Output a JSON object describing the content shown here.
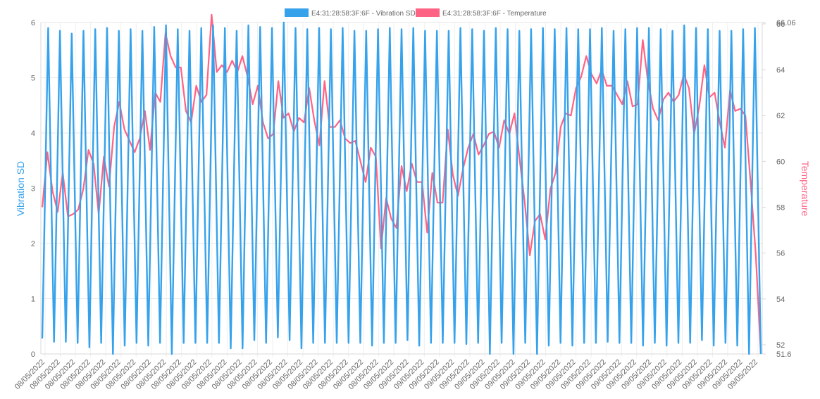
{
  "chart_data": {
    "type": "line",
    "legend_position": "top",
    "grid": true,
    "x_tick_labels": [
      "08/05/2022",
      "08/05/2022",
      "08/05/2022",
      "08/05/2022",
      "08/05/2022",
      "08/05/2022",
      "08/05/2022",
      "08/05/2022",
      "08/05/2022",
      "08/05/2022",
      "08/05/2022",
      "08/05/2022",
      "08/05/2022",
      "08/05/2022",
      "08/05/2022",
      "08/05/2022",
      "08/05/2022",
      "08/05/2022",
      "08/05/2022",
      "08/05/2022",
      "08/05/2022",
      "08/05/2022",
      "08/05/2022",
      "08/05/2022",
      "09/05/2022",
      "09/05/2022",
      "09/05/2022",
      "09/05/2022",
      "09/05/2022",
      "09/05/2022",
      "09/05/2022",
      "09/05/2022",
      "09/05/2022",
      "09/05/2022",
      "09/05/2022",
      "09/05/2022",
      "09/05/2022",
      "09/05/2022",
      "09/05/2022",
      "09/05/2022",
      "09/05/2022",
      "09/05/2022",
      "09/05/2022",
      "09/05/2022",
      "09/05/2022",
      "09/05/2022",
      "09/05/2022",
      "09/05/2022"
    ],
    "y_left": {
      "label": "Vibration SD",
      "min": 0,
      "max": 6,
      "ticks": [
        "0",
        "1",
        "2",
        "3",
        "4",
        "5",
        "6"
      ],
      "color": "#36a2eb"
    },
    "y_right": {
      "label": "Temperature",
      "min": 51.6,
      "max": 66.06,
      "ticks": [
        "51.6",
        "52",
        "54",
        "56",
        "58",
        "60",
        "62",
        "64",
        "66",
        "66.06"
      ],
      "color": "#ff6384"
    },
    "series": [
      {
        "name": "E4:31:28:58:3F:6F - Vibration SD",
        "axis": "left",
        "color": "#36a2eb",
        "values": [
          0.28,
          5.9,
          0.22,
          5.85,
          0.22,
          5.8,
          0.2,
          5.85,
          0.12,
          5.88,
          0.2,
          5.9,
          0.0,
          5.85,
          0.15,
          5.88,
          0.2,
          5.85,
          0.15,
          5.92,
          0.2,
          5.95,
          0.0,
          5.88,
          0.2,
          5.85,
          0.2,
          5.9,
          0.2,
          5.95,
          0.2,
          5.9,
          0.1,
          5.85,
          0.1,
          5.95,
          0.25,
          5.92,
          0.2,
          5.9,
          0.3,
          6.0,
          0.25,
          5.9,
          0.1,
          5.88,
          0.2,
          5.9,
          0.2,
          5.88,
          0.2,
          5.9,
          0.2,
          5.85,
          0.2,
          5.85,
          0.15,
          5.88,
          0.2,
          5.9,
          0.2,
          5.88,
          0.25,
          5.9,
          0.15,
          5.85,
          0.2,
          5.85,
          0.2,
          5.85,
          0.2,
          5.9,
          0.18,
          5.88,
          0.2,
          5.85,
          0.0,
          5.9,
          0.2,
          5.88,
          0.0,
          5.85,
          0.2,
          5.88,
          0.0,
          5.9,
          0.15,
          5.88,
          0.2,
          5.9,
          0.15,
          5.88,
          0.2,
          5.88,
          0.2,
          5.9,
          0.22,
          5.85,
          0.2,
          5.88,
          0.2,
          5.9,
          0.15,
          5.9,
          0.2,
          5.88,
          0.15,
          5.85,
          0.2,
          5.95,
          0.2,
          5.9,
          0.25,
          5.88,
          0.15,
          5.85,
          0.2,
          5.85,
          0.15,
          5.88,
          0.0,
          5.9,
          0.0
        ]
      },
      {
        "name": "E4:31:28:58:3F:6F - Temperature",
        "axis": "right",
        "color": "#ff6384",
        "values": [
          58.0,
          60.4,
          58.7,
          57.8,
          59.5,
          57.6,
          57.7,
          57.9,
          58.8,
          60.5,
          59.9,
          57.7,
          60.2,
          58.9,
          61.5,
          62.6,
          61.4,
          60.9,
          60.4,
          61.0,
          62.2,
          60.5,
          63.0,
          62.6,
          65.6,
          64.6,
          64.1,
          64.1,
          62.2,
          61.7,
          63.3,
          62.6,
          62.9,
          66.4,
          63.9,
          64.2,
          63.9,
          64.4,
          63.9,
          64.6,
          63.7,
          62.5,
          63.3,
          61.7,
          61.0,
          61.2,
          63.5,
          61.9,
          62.1,
          61.3,
          61.9,
          61.7,
          63.2,
          61.8,
          60.7,
          63.5,
          61.5,
          61.5,
          61.8,
          61.0,
          60.8,
          60.9,
          60.0,
          59.1,
          60.6,
          60.2,
          56.2,
          58.4,
          57.5,
          57.1,
          59.8,
          58.7,
          59.9,
          59.1,
          59.1,
          56.9,
          59.5,
          58.2,
          58.2,
          61.4,
          59.4,
          58.5,
          59.7,
          60.6,
          61.2,
          60.3,
          60.7,
          61.2,
          61.3,
          60.6,
          61.8,
          61.2,
          62.1,
          60.1,
          58.2,
          55.9,
          57.4,
          57.7,
          56.6,
          58.8,
          59.5,
          61.5,
          62.1,
          62.0,
          63.2,
          63.7,
          64.6,
          63.8,
          63.4,
          64.0,
          63.3,
          63.3,
          62.9,
          62.5,
          63.5,
          62.4,
          62.5,
          65.3,
          63.5,
          62.3,
          61.8,
          62.7,
          63.0,
          62.6,
          62.9,
          63.8,
          63.2,
          61.2,
          62.4,
          64.2,
          62.8,
          63.0,
          61.7,
          60.6,
          63.1,
          62.2,
          62.3,
          62.0,
          59.1,
          56.0,
          51.6
        ]
      }
    ]
  }
}
